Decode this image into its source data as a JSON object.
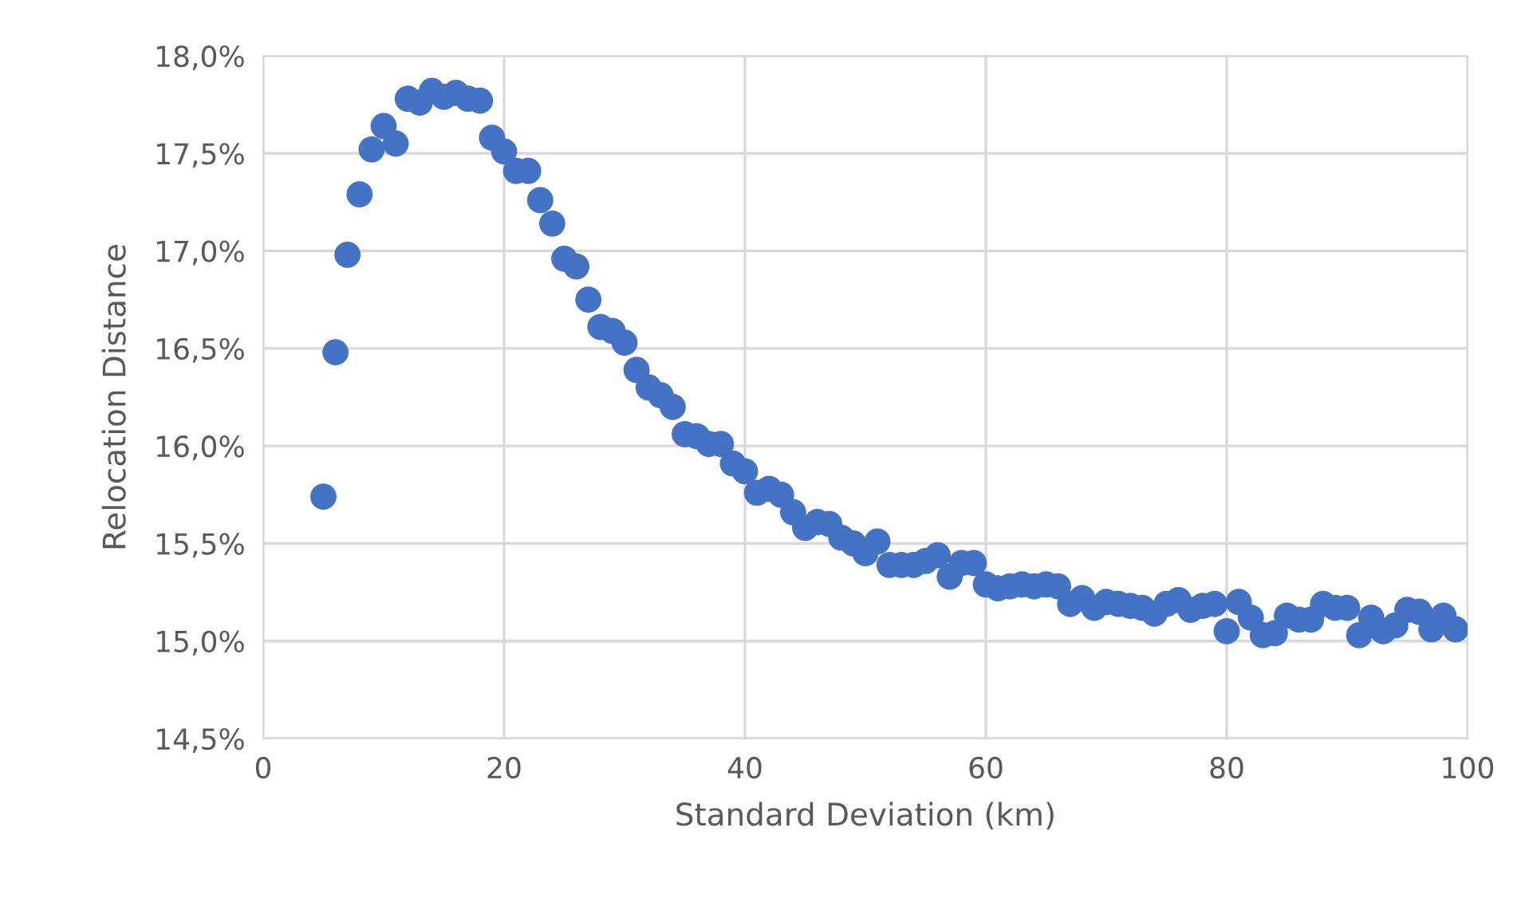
{
  "chart_data": {
    "type": "scatter",
    "xlabel": "Standard Deviation (km)",
    "ylabel": "Relocation Distance",
    "x": [
      5,
      6,
      7,
      8,
      9,
      10,
      11,
      12,
      13,
      14,
      15,
      16,
      17,
      18,
      19,
      20,
      21,
      22,
      23,
      24,
      25,
      26,
      27,
      28,
      29,
      30,
      31,
      32,
      33,
      34,
      35,
      36,
      37,
      38,
      39,
      40,
      41,
      42,
      43,
      44,
      45,
      46,
      47,
      48,
      49,
      50,
      51,
      52,
      53,
      54,
      55,
      56,
      57,
      58,
      59,
      60,
      61,
      62,
      63,
      64,
      65,
      66,
      67,
      68,
      69,
      70,
      71,
      72,
      73,
      74,
      75,
      76,
      77,
      78,
      79,
      80,
      81,
      82,
      83,
      84,
      85,
      86,
      87,
      88,
      89,
      90,
      91,
      92,
      93,
      94,
      95,
      96,
      97,
      98,
      99
    ],
    "series": [
      {
        "color": "#4472c4",
        "values": [
          15.74,
          16.48,
          16.98,
          17.29,
          17.52,
          17.64,
          17.55,
          17.78,
          17.76,
          17.82,
          17.79,
          17.81,
          17.78,
          17.77,
          17.58,
          17.51,
          17.41,
          17.41,
          17.26,
          17.14,
          16.96,
          16.92,
          16.75,
          16.61,
          16.59,
          16.53,
          16.39,
          16.3,
          16.26,
          16.2,
          16.06,
          16.05,
          16.01,
          16.01,
          15.91,
          15.87,
          15.76,
          15.78,
          15.75,
          15.66,
          15.58,
          15.61,
          15.6,
          15.53,
          15.5,
          15.45,
          15.51,
          15.39,
          15.39,
          15.39,
          15.41,
          15.44,
          15.33,
          15.4,
          15.4,
          15.29,
          15.27,
          15.28,
          15.29,
          15.28,
          15.29,
          15.28,
          15.19,
          15.22,
          15.17,
          15.2,
          15.19,
          15.18,
          15.17,
          15.14,
          15.19,
          15.21,
          15.16,
          15.18,
          15.19,
          15.05,
          15.2,
          15.12,
          15.03,
          15.04,
          15.13,
          15.11,
          15.11,
          15.19,
          15.17,
          15.17,
          15.03,
          15.12,
          15.05,
          15.08,
          15.16,
          15.15,
          15.06,
          15.13,
          15.06
        ]
      }
    ],
    "xlim": [
      0,
      100
    ],
    "xticks": [
      0,
      20,
      40,
      60,
      80,
      100
    ],
    "ylim": [
      14.5,
      18.0
    ],
    "yticks": [
      {
        "value": 14.5,
        "label": "14,5%"
      },
      {
        "value": 15.0,
        "label": "15,0%"
      },
      {
        "value": 15.5,
        "label": "15,5%"
      },
      {
        "value": 16.0,
        "label": "16,0%"
      },
      {
        "value": 16.5,
        "label": "16,5%"
      },
      {
        "value": 17.0,
        "label": "17,0%"
      },
      {
        "value": 17.5,
        "label": "17,5%"
      },
      {
        "value": 18.0,
        "label": "18,0%"
      }
    ],
    "grid": true,
    "marker": "circle"
  }
}
